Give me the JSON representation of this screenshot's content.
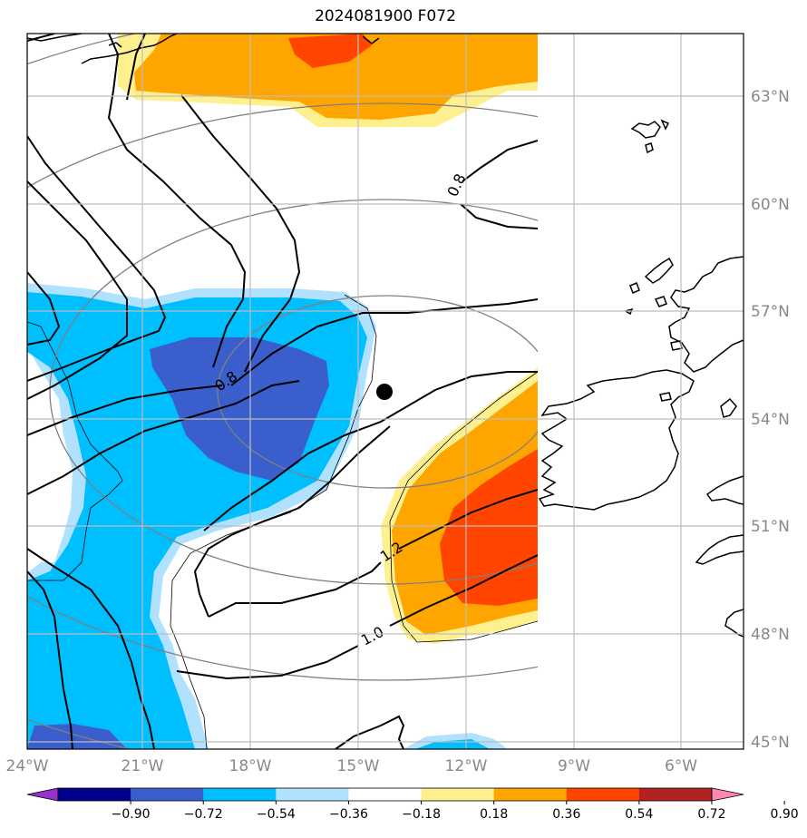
{
  "title": "2024081900 F072",
  "lat_labels": [
    "63°N",
    "60°N",
    "57°N",
    "54°N",
    "51°N",
    "48°N",
    "45°N"
  ],
  "lon_labels": [
    "24°W",
    "21°W",
    "18°W",
    "15°W",
    "12°W",
    "9°W",
    "6°W"
  ],
  "contour_labels": [
    "0.8",
    "0.8",
    "1.2",
    "1.0"
  ],
  "colorbar": {
    "ticks": [
      "−0.90",
      "−0.72",
      "−0.54",
      "−0.36",
      "−0.18",
      "0.18",
      "0.36",
      "0.54",
      "0.72",
      "0.90"
    ],
    "colors": [
      "#9932cc",
      "#00008b",
      "#3a5fcd",
      "#00bfff",
      "#b0e2ff",
      "#ffffff",
      "#fff08f",
      "#ffa500",
      "#ff4500",
      "#b22222",
      "#ff88b0"
    ]
  },
  "marker": "storm-center-dot"
}
